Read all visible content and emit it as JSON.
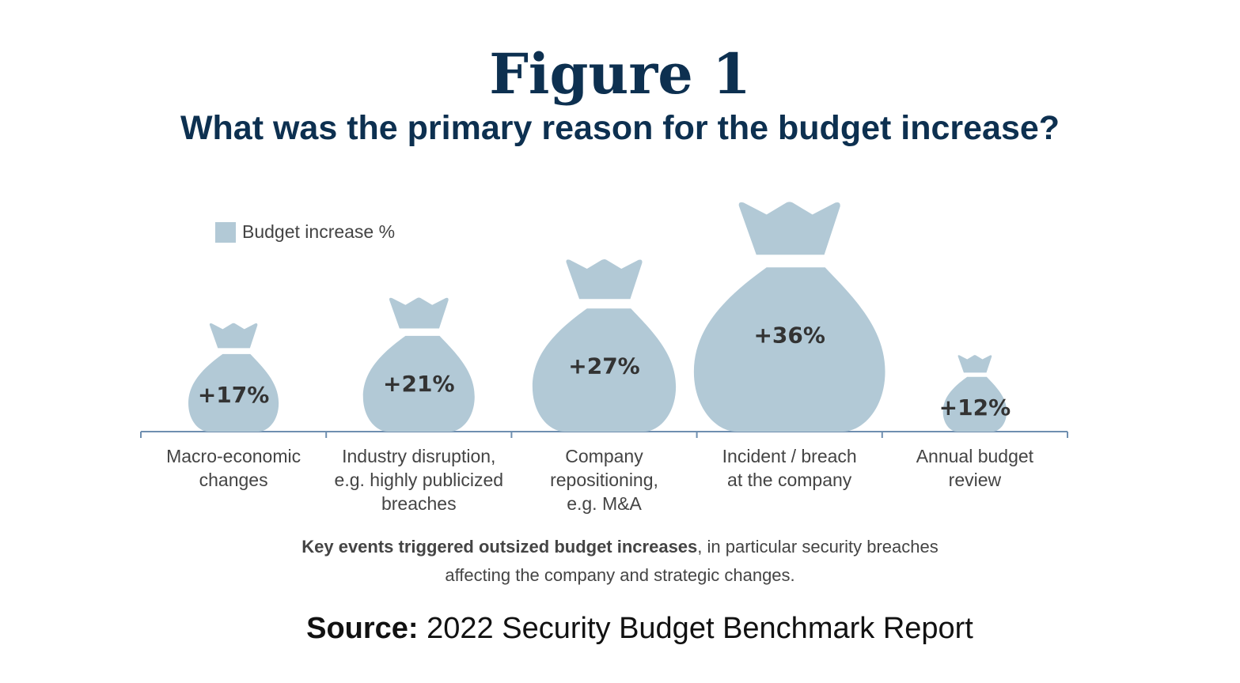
{
  "heading": {
    "figure": "Figure 1",
    "question": "What was the primary reason for the budget increase?"
  },
  "chart_data": {
    "type": "bar",
    "mark": "money-bag",
    "categories": [
      "Macro-economic changes",
      "Industry disruption, e.g. highly publicized breaches",
      "Company repositioning, e.g. M&A",
      "Incident / breach at the company",
      "Annual budget review"
    ],
    "category_lines": [
      [
        "Macro-economic",
        "changes"
      ],
      [
        "Industry disruption,",
        "e.g. highly publicized",
        "breaches"
      ],
      [
        "Company",
        "repositioning,",
        "e.g. M&A"
      ],
      [
        "Incident / breach",
        "at the company"
      ],
      [
        "Annual budget",
        "review"
      ]
    ],
    "series": [
      {
        "name": "Budget increase %",
        "values": [
          17,
          21,
          27,
          36,
          12
        ]
      }
    ],
    "data_labels": [
      "+17%",
      "+21%",
      "+27%",
      "+36%",
      "+12%"
    ],
    "legend": "top-left",
    "color": "#b2c9d6",
    "axis_color": "#6f8fb0",
    "grid": false
  },
  "note": {
    "bold": "Key events triggered outsized budget increases",
    "rest_line1": ", in particular security breaches",
    "line2": "affecting the company and strategic changes."
  },
  "source": {
    "label": "Source:",
    "text": " 2022 Security Budget Benchmark Report"
  }
}
